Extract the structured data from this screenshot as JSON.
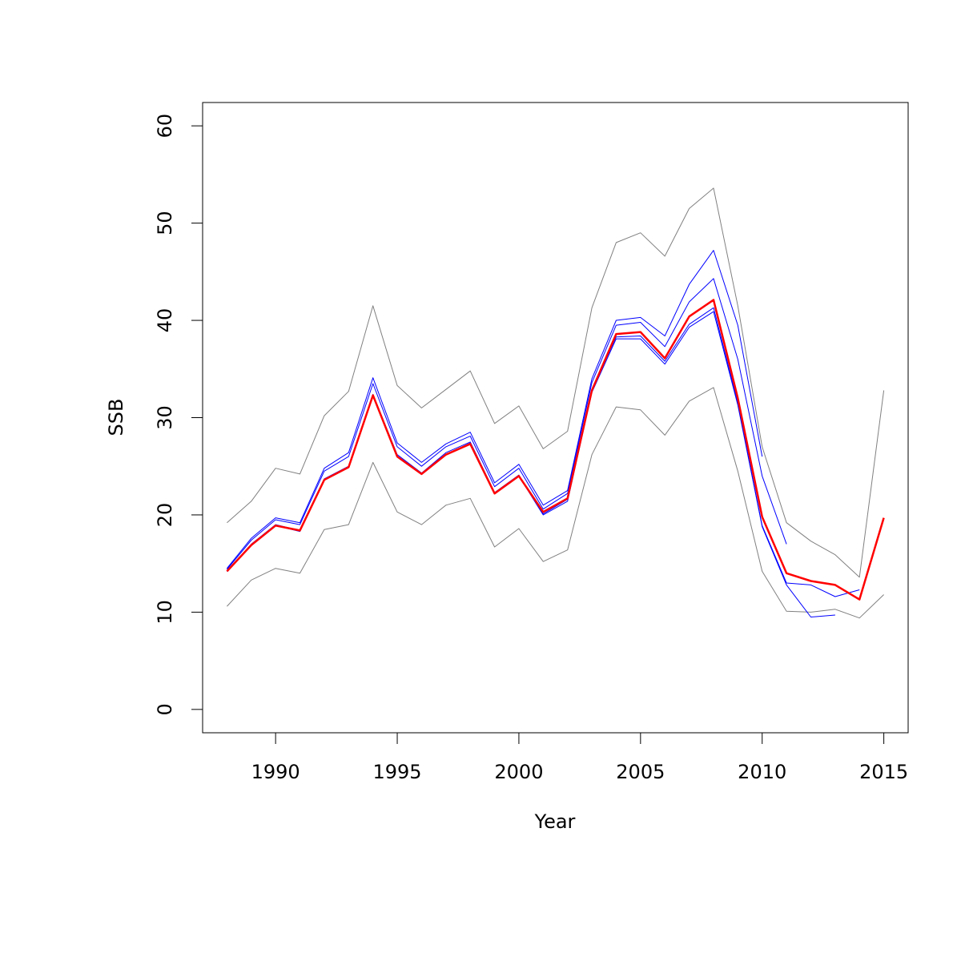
{
  "chart_data": {
    "type": "line",
    "title": "",
    "xlabel": "Year",
    "ylabel": "SSB",
    "xlim": [
      1987,
      2016
    ],
    "ylim": [
      -2.4,
      62.4
    ],
    "xticks": [
      1990,
      1995,
      2000,
      2005,
      2010,
      2015
    ],
    "yticks": [
      0,
      10,
      20,
      30,
      40,
      50,
      60
    ],
    "grid": false,
    "legend": "none",
    "colors": {
      "estimate": "#ff0000",
      "retrospective": "#0000ff",
      "confidence": "#808080"
    },
    "series": [
      {
        "role": "upper-ci",
        "color": "#808080",
        "x": [
          1988,
          1989,
          1990,
          1991,
          1992,
          1993,
          1994,
          1995,
          1996,
          1997,
          1998,
          1999,
          2000,
          2001,
          2002,
          2003,
          2004,
          2005,
          2006,
          2007,
          2008,
          2009,
          2010,
          2011,
          2012,
          2013,
          2014,
          2015
        ],
        "y": [
          19.2,
          21.4,
          24.8,
          24.2,
          30.2,
          32.7,
          41.5,
          33.3,
          31.0,
          32.9,
          34.8,
          29.4,
          31.2,
          26.8,
          28.6,
          41.3,
          48.0,
          49.0,
          46.6,
          51.5,
          53.6,
          41.5,
          27.0,
          19.2,
          17.3,
          15.9,
          13.6,
          32.8
        ]
      },
      {
        "role": "lower-ci",
        "color": "#808080",
        "x": [
          1988,
          1989,
          1990,
          1991,
          1992,
          1993,
          1994,
          1995,
          1996,
          1997,
          1998,
          1999,
          2000,
          2001,
          2002,
          2003,
          2004,
          2005,
          2006,
          2007,
          2008,
          2009,
          2010,
          2011,
          2012,
          2013,
          2014,
          2015
        ],
        "y": [
          10.6,
          13.3,
          14.5,
          14.0,
          18.5,
          19.0,
          25.4,
          20.3,
          19.0,
          21.0,
          21.7,
          16.7,
          18.6,
          15.2,
          16.4,
          26.2,
          31.1,
          30.8,
          28.2,
          31.7,
          33.1,
          24.5,
          14.2,
          10.1,
          10.0,
          10.3,
          9.4,
          11.8
        ]
      },
      {
        "role": "retrospective-peel-1",
        "color": "#0000ff",
        "x": [
          1988,
          1989,
          1990,
          1991,
          1992,
          1993,
          1994,
          1995,
          1996,
          1997,
          1998,
          1999,
          2000,
          2001,
          2002,
          2003,
          2004,
          2005,
          2006,
          2007,
          2008,
          2009,
          2010,
          2011,
          2012,
          2013,
          2014
        ],
        "y": [
          14.2,
          17.0,
          19.0,
          18.4,
          23.7,
          25.0,
          32.4,
          26.2,
          24.3,
          26.4,
          27.5,
          22.3,
          24.1,
          20.1,
          21.6,
          32.8,
          38.3,
          38.4,
          35.8,
          39.6,
          41.3,
          31.5,
          18.9,
          13.0,
          12.8,
          11.6,
          12.3
        ]
      },
      {
        "role": "retrospective-peel-2",
        "color": "#0000ff",
        "x": [
          1988,
          1989,
          1990,
          1991,
          1992,
          1993,
          1994,
          1995,
          1996,
          1997,
          1998,
          1999,
          2000,
          2001,
          2002,
          2003,
          2004,
          2005,
          2006,
          2007,
          2008,
          2009,
          2010,
          2011,
          2012,
          2013
        ],
        "y": [
          14.2,
          16.9,
          18.9,
          18.3,
          23.6,
          24.9,
          32.3,
          26.0,
          24.2,
          26.2,
          27.4,
          22.2,
          24.0,
          20.0,
          21.4,
          32.6,
          38.1,
          38.1,
          35.5,
          39.3,
          40.9,
          31.3,
          18.8,
          12.8,
          9.5,
          9.7
        ]
      },
      {
        "role": "retrospective-peel-3",
        "color": "#0000ff",
        "x": [
          1988,
          1989,
          1990,
          1991,
          1992,
          1993,
          1994,
          1995,
          1996,
          1997,
          1998,
          1999,
          2000,
          2001,
          2002,
          2003,
          2004,
          2005,
          2006,
          2007,
          2008,
          2009,
          2010,
          2011
        ],
        "y": [
          14.4,
          17.4,
          19.5,
          19.0,
          24.5,
          26.0,
          33.5,
          27.0,
          25.0,
          27.0,
          28.1,
          22.9,
          24.8,
          20.6,
          22.2,
          33.6,
          39.5,
          39.8,
          37.3,
          41.9,
          44.3,
          36.0,
          24.0,
          17.0
        ]
      },
      {
        "role": "retrospective-peel-4",
        "color": "#0000ff",
        "x": [
          1988,
          1989,
          1990,
          1991,
          1992,
          1993,
          1994,
          1995,
          1996,
          1997,
          1998,
          1999,
          2000,
          2001,
          2002,
          2003,
          2004,
          2005,
          2006,
          2007,
          2008,
          2009,
          2010
        ],
        "y": [
          14.5,
          17.6,
          19.7,
          19.2,
          24.8,
          26.4,
          34.1,
          27.4,
          25.4,
          27.3,
          28.5,
          23.3,
          25.2,
          21.0,
          22.5,
          34.0,
          40.0,
          40.3,
          38.4,
          43.7,
          47.2,
          39.5,
          26.0
        ]
      },
      {
        "role": "estimate",
        "color": "#ff0000",
        "x": [
          1988,
          1989,
          1990,
          1991,
          1992,
          1993,
          1994,
          1995,
          1996,
          1997,
          1998,
          1999,
          2000,
          2001,
          2002,
          2003,
          2004,
          2005,
          2006,
          2007,
          2008,
          2009,
          2010,
          2011,
          2012,
          2013,
          2014,
          2015
        ],
        "y": [
          14.2,
          16.9,
          18.9,
          18.4,
          23.6,
          24.9,
          32.3,
          26.0,
          24.2,
          26.2,
          27.3,
          22.2,
          24.0,
          20.3,
          21.7,
          32.8,
          38.6,
          38.8,
          36.1,
          40.4,
          42.1,
          32.0,
          19.8,
          14.0,
          13.2,
          12.8,
          11.3,
          19.7
        ]
      }
    ]
  }
}
